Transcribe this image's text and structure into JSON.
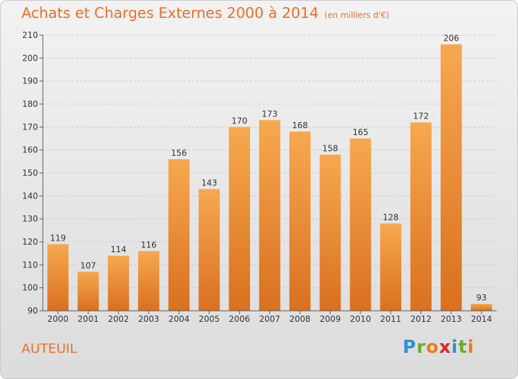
{
  "title": "Achats et Charges Externes 2000 à 2014",
  "subtitle": "(en milliers d'€)",
  "place": "AUTEUIL",
  "logo": {
    "letters": [
      "P",
      "r",
      "o",
      "x",
      "i",
      "t",
      "i"
    ],
    "colors": [
      "#2e8fd6",
      "#6aaa2e",
      "#ee7a1c",
      "#d72a2a",
      "#2e8fd6",
      "#6aaa2e",
      "#ee7a1c"
    ]
  },
  "colors": {
    "bar_top": "#f7a84f",
    "bar_bottom": "#d9701f",
    "title": "#ee6f28"
  },
  "chart_data": {
    "type": "bar",
    "title": "Achats et Charges Externes 2000 à 2014",
    "xlabel": "",
    "ylabel": "",
    "categories": [
      "2000",
      "2001",
      "2002",
      "2003",
      "2004",
      "2005",
      "2006",
      "2007",
      "2008",
      "2009",
      "2010",
      "2011",
      "2012",
      "2013",
      "2014"
    ],
    "values": [
      119,
      107,
      114,
      116,
      156,
      143,
      170,
      173,
      168,
      158,
      165,
      128,
      172,
      206,
      93
    ],
    "ylim": [
      90,
      210
    ],
    "yticks": [
      90,
      100,
      110,
      120,
      130,
      140,
      150,
      160,
      170,
      180,
      190,
      200,
      210
    ],
    "grid": true,
    "legend": "none"
  }
}
